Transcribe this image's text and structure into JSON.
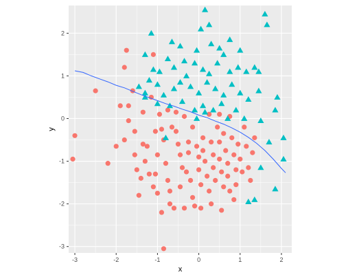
{
  "chart_data": {
    "type": "scatter",
    "title": "",
    "xlabel": "x",
    "ylabel": "y",
    "xlim": [
      -3.15,
      2.25
    ],
    "ylim": [
      -3.15,
      2.65
    ],
    "x_ticks": [
      -3,
      -2,
      -1,
      0,
      1,
      2
    ],
    "y_ticks": [
      -3,
      -2,
      -1,
      0,
      1,
      2
    ],
    "x_tick_labels": [
      "-3",
      "-2",
      "-1",
      "0",
      "1",
      "2"
    ],
    "y_tick_labels": [
      "-3",
      "-2",
      "-1",
      "0",
      "1",
      "2"
    ],
    "grid": true,
    "legend": "none",
    "colors": {
      "panel": "#ebebeb",
      "grid_major": "#ffffff",
      "series_a": "#f8766d",
      "series_b": "#00bfc4",
      "boundary": "#3366ff"
    },
    "series": [
      {
        "marker": "circle",
        "color": "#f8766d",
        "points": [
          [
            -3.0,
            -0.4
          ],
          [
            -3.05,
            -0.95
          ],
          [
            -2.5,
            0.65
          ],
          [
            -2.2,
            -1.05
          ],
          [
            -1.75,
            1.6
          ],
          [
            -1.8,
            1.2
          ],
          [
            -1.9,
            0.3
          ],
          [
            -2.0,
            -0.65
          ],
          [
            -1.8,
            -0.5
          ],
          [
            -1.6,
            0.65
          ],
          [
            -1.7,
            0.3
          ],
          [
            -1.7,
            -0.05
          ],
          [
            -1.55,
            -0.3
          ],
          [
            -1.55,
            -0.85
          ],
          [
            -1.5,
            -1.2
          ],
          [
            -1.4,
            -1.4
          ],
          [
            -1.45,
            -1.8
          ],
          [
            -1.35,
            0.15
          ],
          [
            -1.35,
            -0.6
          ],
          [
            -1.25,
            -0.65
          ],
          [
            -1.3,
            -1.0
          ],
          [
            -1.2,
            -1.3
          ],
          [
            -1.1,
            1.5
          ],
          [
            -1.15,
            0.5
          ],
          [
            -1.05,
            -0.3
          ],
          [
            -1.0,
            -0.85
          ],
          [
            -1.05,
            -1.3
          ],
          [
            -1.1,
            -1.6
          ],
          [
            -1.0,
            -1.75
          ],
          [
            -0.9,
            -2.2
          ],
          [
            -0.85,
            -3.05
          ],
          [
            -0.95,
            0.1
          ],
          [
            -0.9,
            -0.25
          ],
          [
            -0.85,
            -0.5
          ],
          [
            -0.8,
            -1.05
          ],
          [
            -0.75,
            -1.45
          ],
          [
            -0.7,
            -1.7
          ],
          [
            -0.7,
            -2.0
          ],
          [
            -0.6,
            -2.1
          ],
          [
            -0.55,
            -0.3
          ],
          [
            -0.5,
            -0.6
          ],
          [
            -0.45,
            -0.85
          ],
          [
            -0.4,
            -1.15
          ],
          [
            -0.45,
            -1.6
          ],
          [
            -0.35,
            -2.1
          ],
          [
            -0.3,
            -1.25
          ],
          [
            -0.25,
            -0.55
          ],
          [
            -0.25,
            -0.8
          ],
          [
            -0.2,
            -1.45
          ],
          [
            -0.15,
            -1.85
          ],
          [
            -0.1,
            -2.05
          ],
          [
            -0.05,
            -0.65
          ],
          [
            0.0,
            -0.9
          ],
          [
            0.0,
            -1.2
          ],
          [
            0.05,
            -1.55
          ],
          [
            0.05,
            -2.1
          ],
          [
            0.1,
            -0.45
          ],
          [
            0.1,
            -0.75
          ],
          [
            0.15,
            -1.0
          ],
          [
            0.2,
            -1.35
          ],
          [
            0.25,
            -1.7
          ],
          [
            0.3,
            -2.0
          ],
          [
            0.3,
            -0.55
          ],
          [
            0.35,
            -0.85
          ],
          [
            0.35,
            -1.15
          ],
          [
            0.4,
            -1.45
          ],
          [
            0.45,
            -0.2
          ],
          [
            0.5,
            -0.55
          ],
          [
            0.5,
            -0.95
          ],
          [
            0.55,
            -1.25
          ],
          [
            0.6,
            -1.6
          ],
          [
            0.55,
            -2.15
          ],
          [
            0.6,
            -0.35
          ],
          [
            0.65,
            -0.75
          ],
          [
            0.7,
            -1.05
          ],
          [
            0.7,
            -1.35
          ],
          [
            0.75,
            -1.7
          ],
          [
            0.75,
            0.05
          ],
          [
            0.8,
            -0.45
          ],
          [
            0.85,
            -0.85
          ],
          [
            0.9,
            -1.2
          ],
          [
            0.9,
            -1.55
          ],
          [
            0.85,
            -1.9
          ],
          [
            0.95,
            -0.6
          ],
          [
            1.0,
            -0.95
          ],
          [
            1.05,
            -1.25
          ],
          [
            1.1,
            -0.2
          ],
          [
            1.15,
            -0.65
          ],
          [
            1.2,
            -1.15
          ],
          [
            1.25,
            -1.45
          ],
          [
            1.3,
            -0.8
          ],
          [
            1.35,
            -0.45
          ],
          [
            -0.75,
            0.2
          ],
          [
            -0.55,
            0.15
          ],
          [
            -0.35,
            0.05
          ],
          [
            0.25,
            0.1
          ],
          [
            0.5,
            0.1
          ],
          [
            -0.65,
            -0.2
          ],
          [
            -0.15,
            -0.2
          ]
        ]
      },
      {
        "marker": "triangle",
        "color": "#00bfc4",
        "points": [
          [
            0.15,
            2.55
          ],
          [
            0.05,
            2.1
          ],
          [
            0.25,
            2.2
          ],
          [
            1.6,
            2.45
          ],
          [
            1.65,
            2.2
          ],
          [
            -1.15,
            2.0
          ],
          [
            -0.65,
            1.8
          ],
          [
            -0.45,
            1.7
          ],
          [
            -0.05,
            1.6
          ],
          [
            0.3,
            1.75
          ],
          [
            0.5,
            1.65
          ],
          [
            0.75,
            1.85
          ],
          [
            1.0,
            1.6
          ],
          [
            -1.3,
            1.5
          ],
          [
            -1.1,
            1.15
          ],
          [
            -0.95,
            1.1
          ],
          [
            -0.75,
            1.4
          ],
          [
            -0.6,
            1.2
          ],
          [
            -0.35,
            1.35
          ],
          [
            -0.3,
            1.0
          ],
          [
            -0.1,
            1.3
          ],
          [
            0.1,
            1.15
          ],
          [
            0.25,
            1.05
          ],
          [
            0.45,
            1.3
          ],
          [
            0.6,
            1.5
          ],
          [
            0.75,
            1.1
          ],
          [
            0.95,
            1.2
          ],
          [
            1.15,
            1.1
          ],
          [
            1.35,
            1.2
          ],
          [
            1.45,
            1.1
          ],
          [
            -1.45,
            0.75
          ],
          [
            -1.3,
            0.6
          ],
          [
            -1.2,
            0.9
          ],
          [
            -1.0,
            0.8
          ],
          [
            -0.85,
            0.55
          ],
          [
            -0.6,
            0.7
          ],
          [
            -0.45,
            0.85
          ],
          [
            -0.2,
            0.75
          ],
          [
            0.0,
            0.6
          ],
          [
            0.2,
            0.85
          ],
          [
            0.4,
            0.7
          ],
          [
            0.6,
            0.55
          ],
          [
            0.8,
            0.8
          ],
          [
            1.0,
            0.6
          ],
          [
            1.2,
            0.45
          ],
          [
            1.45,
            0.65
          ],
          [
            1.9,
            0.5
          ],
          [
            1.85,
            0.2
          ],
          [
            -1.0,
            0.35
          ],
          [
            -0.7,
            0.3
          ],
          [
            -0.4,
            0.4
          ],
          [
            -0.1,
            0.2
          ],
          [
            0.1,
            0.3
          ],
          [
            0.35,
            0.2
          ],
          [
            0.55,
            0.35
          ],
          [
            0.9,
            0.2
          ],
          [
            1.1,
            0.0
          ],
          [
            1.5,
            -0.05
          ],
          [
            2.05,
            -0.45
          ],
          [
            2.05,
            -0.95
          ],
          [
            1.85,
            -1.65
          ],
          [
            1.5,
            -1.15
          ],
          [
            1.35,
            -1.9
          ],
          [
            1.2,
            -1.95
          ],
          [
            -0.8,
            -0.45
          ],
          [
            -1.3,
            0.5
          ],
          [
            1.7,
            -0.55
          ],
          [
            0.7,
            0.0
          ],
          [
            -0.05,
            0.0
          ],
          [
            0.15,
            0.15
          ]
        ]
      }
    ],
    "boundary_line": [
      [
        -3.0,
        1.12
      ],
      [
        -2.8,
        1.08
      ],
      [
        -2.6,
        1.0
      ],
      [
        -2.4,
        0.93
      ],
      [
        -2.2,
        0.86
      ],
      [
        -2.0,
        0.78
      ],
      [
        -1.8,
        0.72
      ],
      [
        -1.6,
        0.64
      ],
      [
        -1.4,
        0.56
      ],
      [
        -1.2,
        0.49
      ],
      [
        -1.0,
        0.42
      ],
      [
        -0.8,
        0.35
      ],
      [
        -0.6,
        0.29
      ],
      [
        -0.4,
        0.22
      ],
      [
        -0.2,
        0.16
      ],
      [
        0.0,
        0.08
      ],
      [
        0.2,
        0.02
      ],
      [
        0.4,
        -0.06
      ],
      [
        0.6,
        -0.13
      ],
      [
        0.8,
        -0.22
      ],
      [
        1.0,
        -0.32
      ],
      [
        1.2,
        -0.44
      ],
      [
        1.4,
        -0.58
      ],
      [
        1.6,
        -0.75
      ],
      [
        1.8,
        -0.95
      ],
      [
        2.0,
        -1.17
      ],
      [
        2.1,
        -1.27
      ]
    ]
  }
}
